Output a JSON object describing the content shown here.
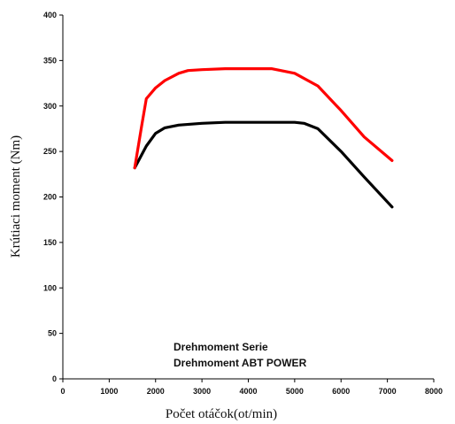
{
  "chart_data": {
    "type": "line",
    "xlabel": "Počet otáčok(ot/min)",
    "ylabel": "Krútiaci moment (Nm)",
    "xlim": [
      0,
      8000
    ],
    "ylim": [
      0,
      400
    ],
    "x_ticks": [
      0,
      1000,
      2000,
      3000,
      4000,
      5000,
      6000,
      7000,
      8000
    ],
    "y_ticks": [
      0,
      50,
      100,
      150,
      200,
      250,
      300,
      350,
      400
    ],
    "grid": false,
    "legend_position": "bottom-center",
    "series": [
      {
        "name": "Drehmoment Serie",
        "color": "#000000",
        "x": [
          1550,
          1800,
          2000,
          2200,
          2500,
          3000,
          3500,
          4000,
          4500,
          5000,
          5200,
          5500,
          6000,
          6500,
          7100
        ],
        "y": [
          232,
          256,
          270,
          276,
          279,
          281,
          282,
          282,
          282,
          282,
          281,
          275,
          250,
          222,
          189
        ]
      },
      {
        "name": "Drehmoment ABT POWER",
        "color": "#ff0000",
        "x": [
          1550,
          1700,
          1800,
          2000,
          2200,
          2500,
          2700,
          3000,
          3500,
          4000,
          4500,
          5000,
          5500,
          6000,
          6500,
          7100
        ],
        "y": [
          232,
          278,
          308,
          320,
          328,
          336,
          339,
          340,
          341,
          341,
          341,
          336,
          322,
          295,
          266,
          240
        ]
      }
    ]
  }
}
